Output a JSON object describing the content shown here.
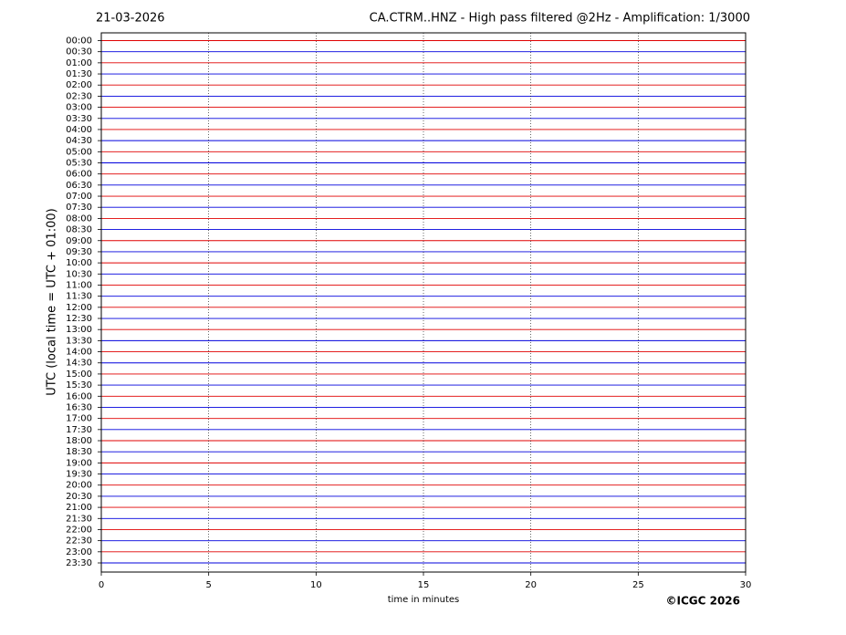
{
  "chart_data": {
    "type": "helicorder",
    "date": "21-03-2026",
    "title": "CA.CTRM..HNZ - High pass filtered @2Hz - Amplification: 1/3000",
    "y_label": "UTC (local time = UTC + 01:00)",
    "x_label": "time in minutes",
    "copyright": "©ICGC 2026",
    "categories": [
      "00:00",
      "00:30",
      "01:00",
      "01:30",
      "02:00",
      "02:30",
      "03:00",
      "03:30",
      "04:00",
      "04:30",
      "05:00",
      "05:30",
      "06:00",
      "06:30",
      "07:00",
      "07:30",
      "08:00",
      "08:30",
      "09:00",
      "09:30",
      "10:00",
      "10:30",
      "11:00",
      "11:30",
      "12:00",
      "12:30",
      "13:00",
      "13:30",
      "14:00",
      "14:30",
      "15:00",
      "15:30",
      "16:00",
      "16:30",
      "17:00",
      "17:30",
      "18:00",
      "18:30",
      "19:00",
      "19:30",
      "20:00",
      "20:30",
      "21:00",
      "21:30",
      "22:00",
      "22:30",
      "23:00",
      "23:30"
    ],
    "colors": [
      "#e00000",
      "#0000dd"
    ],
    "xlim": [
      0,
      30
    ],
    "xticks": [
      0,
      5,
      10,
      15,
      20,
      25,
      30
    ],
    "grid": true
  }
}
